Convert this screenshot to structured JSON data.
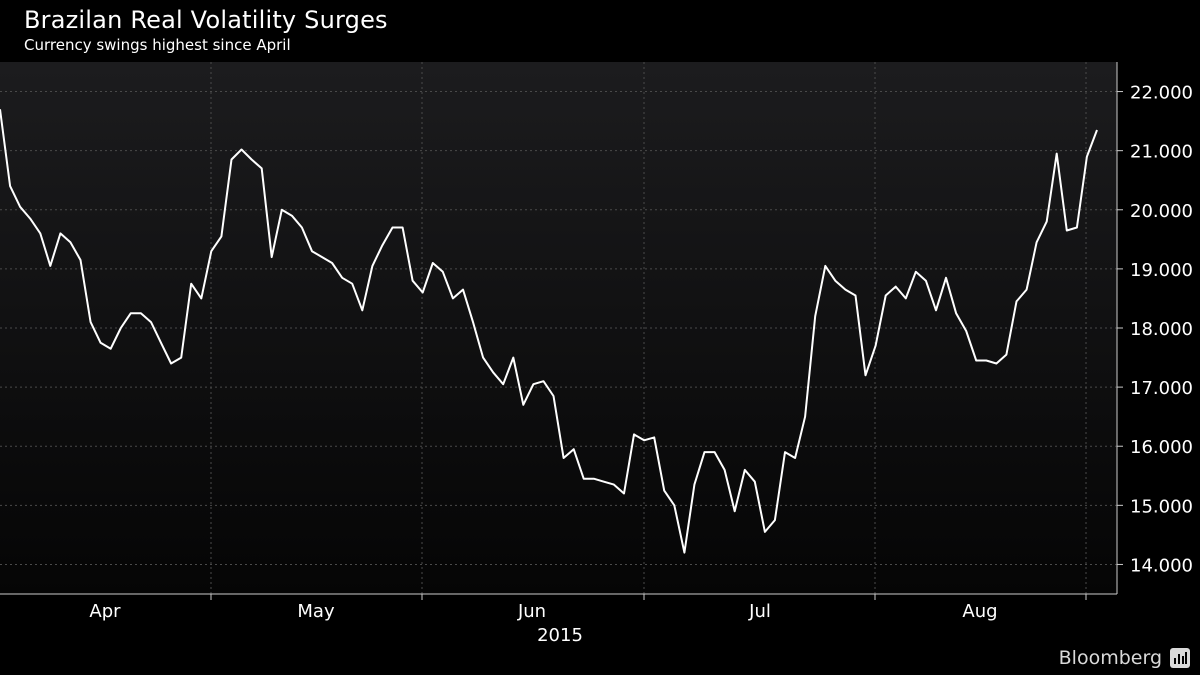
{
  "header": {
    "title": "Brazilan Real Volatility Surges",
    "subtitle": "Currency swings highest since April"
  },
  "brand": {
    "name": "Bloomberg",
    "icon": "bloomberg-terminal-icon"
  },
  "colors": {
    "background": "#000000",
    "plot_top": "#1c1c1e",
    "plot_bottom": "#050505",
    "line": "#ffffff",
    "grid": "#555555"
  },
  "chart_data": {
    "type": "line",
    "title": "Brazilan Real Volatility Surges",
    "subtitle": "Currency swings highest since April",
    "xlabel": "2015",
    "ylabel": "",
    "ylim": [
      13.5,
      22.5
    ],
    "y_ticks": [
      "14.000",
      "15.000",
      "16.000",
      "17.000",
      "18.000",
      "19.000",
      "20.000",
      "21.000",
      "22.000"
    ],
    "x_ticks": [
      "Apr",
      "May",
      "Jun",
      "Jul",
      "Aug"
    ],
    "year_label": "2015",
    "grid": true,
    "y_axis_position": "right",
    "series": [
      {
        "values": [
          21.7,
          20.4,
          20.05,
          19.85,
          19.6,
          19.05,
          19.6,
          19.45,
          19.15,
          18.1,
          17.75,
          17.65,
          18.0,
          18.25,
          18.25,
          18.1,
          17.75,
          17.4,
          17.5,
          18.75,
          18.5,
          19.3,
          19.55,
          20.85,
          21.02,
          20.85,
          20.7,
          19.2,
          20.0,
          19.9,
          19.7,
          19.3,
          19.2,
          19.1,
          18.85,
          18.75,
          18.3,
          19.05,
          19.4,
          19.7,
          19.7,
          18.8,
          18.6,
          19.1,
          18.95,
          18.5,
          18.65,
          18.1,
          17.5,
          17.25,
          17.05,
          17.5,
          16.7,
          17.05,
          17.1,
          16.85,
          15.8,
          15.95,
          15.45,
          15.45,
          15.4,
          15.35,
          15.2,
          16.2,
          16.1,
          16.15,
          15.25,
          15.0,
          14.2,
          15.35,
          15.9,
          15.9,
          15.6,
          14.9,
          15.6,
          15.4,
          14.55,
          14.75,
          15.9,
          15.8,
          16.5,
          18.2,
          19.05,
          18.8,
          18.65,
          18.55,
          17.2,
          17.7,
          18.55,
          18.7,
          18.5,
          18.95,
          18.8,
          18.3,
          18.85,
          18.25,
          17.95,
          17.45,
          17.45,
          17.4,
          17.55,
          18.45,
          18.65,
          19.45,
          19.8,
          20.95,
          19.65,
          19.7,
          20.9,
          21.35
        ]
      }
    ]
  }
}
